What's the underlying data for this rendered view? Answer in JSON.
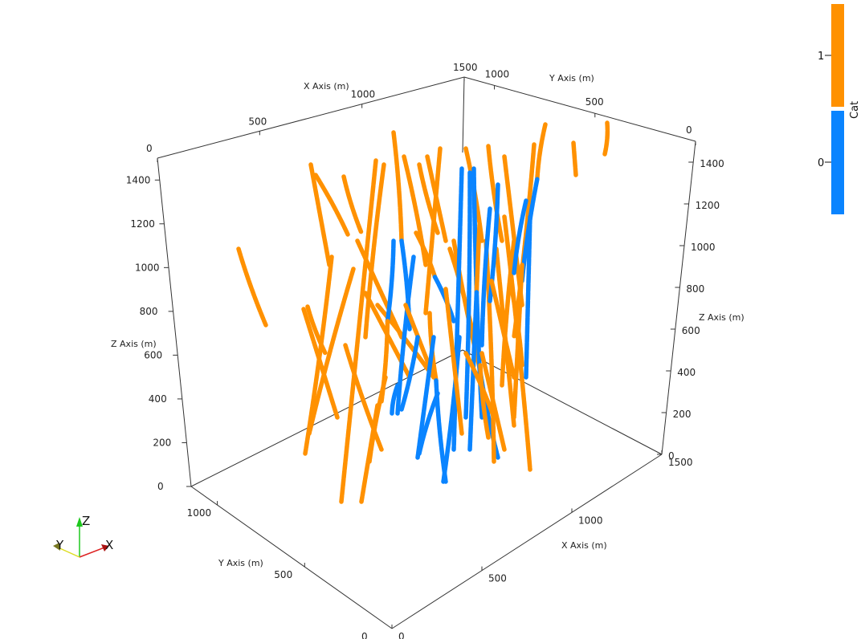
{
  "chart_data": {
    "type": "3d-line",
    "axes": {
      "x": {
        "label": "X Axis (m)",
        "ticks": [
          0,
          500,
          1000,
          1500
        ]
      },
      "y": {
        "label": "Y Axis (m)",
        "ticks": [
          0,
          500,
          1000
        ]
      },
      "z": {
        "label": "Z Axis (m)",
        "ticks": [
          200,
          400,
          600,
          800,
          1000,
          1200,
          1400
        ]
      },
      "bottom_y_ticks": [
        0,
        500,
        1000
      ],
      "bottom_x_ticks": [
        0,
        500,
        1000,
        1500
      ],
      "right_z_ticks": [
        0,
        200,
        400,
        600,
        800,
        1000,
        1200,
        1400
      ],
      "back_y_ticks": [
        0,
        500,
        1000
      ],
      "left_z_ticks": [
        0,
        200,
        400,
        600,
        800,
        1000,
        1200,
        1400
      ]
    },
    "legend": {
      "title": "Cat",
      "position": "top-right",
      "categories": [
        {
          "value": "1",
          "color": "#ff9100"
        },
        {
          "value": "0",
          "color": "#0a84ff"
        }
      ]
    },
    "orientation_axes": {
      "x": "X",
      "y": "Y",
      "z": "Z"
    },
    "colors": {
      "cat1": "#ff9100",
      "cat0": "#0a84ff",
      "axis": "#333333"
    }
  }
}
